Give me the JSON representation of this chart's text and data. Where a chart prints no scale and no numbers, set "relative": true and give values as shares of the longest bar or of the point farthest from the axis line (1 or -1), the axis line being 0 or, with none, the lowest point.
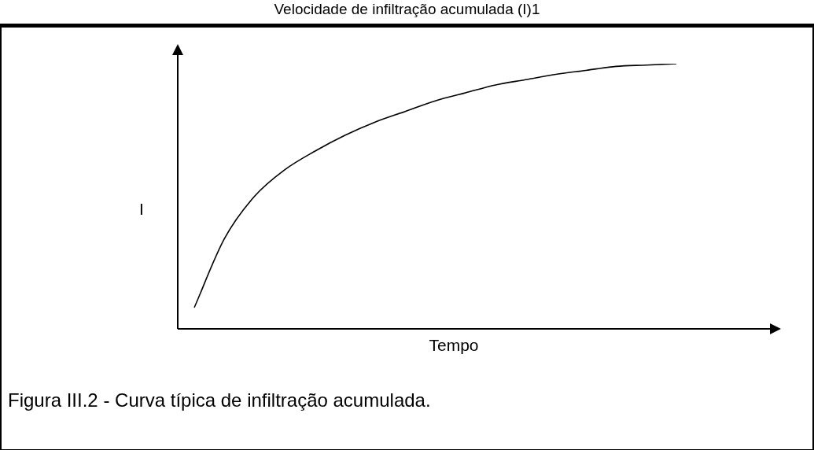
{
  "chart_data": {
    "type": "line",
    "title": "Velocidade de infiltração acumulada (I)1",
    "xlabel": "Tempo",
    "ylabel": "I",
    "relative": true,
    "marker": "none",
    "categories": [
      null,
      null,
      null,
      null,
      null,
      null,
      null,
      null,
      null,
      null,
      null,
      null,
      null,
      null,
      null,
      null,
      null
    ],
    "series": [
      {
        "color": "#000000",
        "values": [
          0.08,
          0.34,
          0.5,
          0.6,
          0.67,
          0.73,
          0.78,
          0.82,
          0.86,
          0.89,
          0.92,
          0.94,
          0.96,
          0.975,
          0.99,
          0.995,
          1
        ]
      }
    ],
    "annotations": [
      "Figura III.2 - Curva típica de infiltração acumulada."
    ]
  }
}
